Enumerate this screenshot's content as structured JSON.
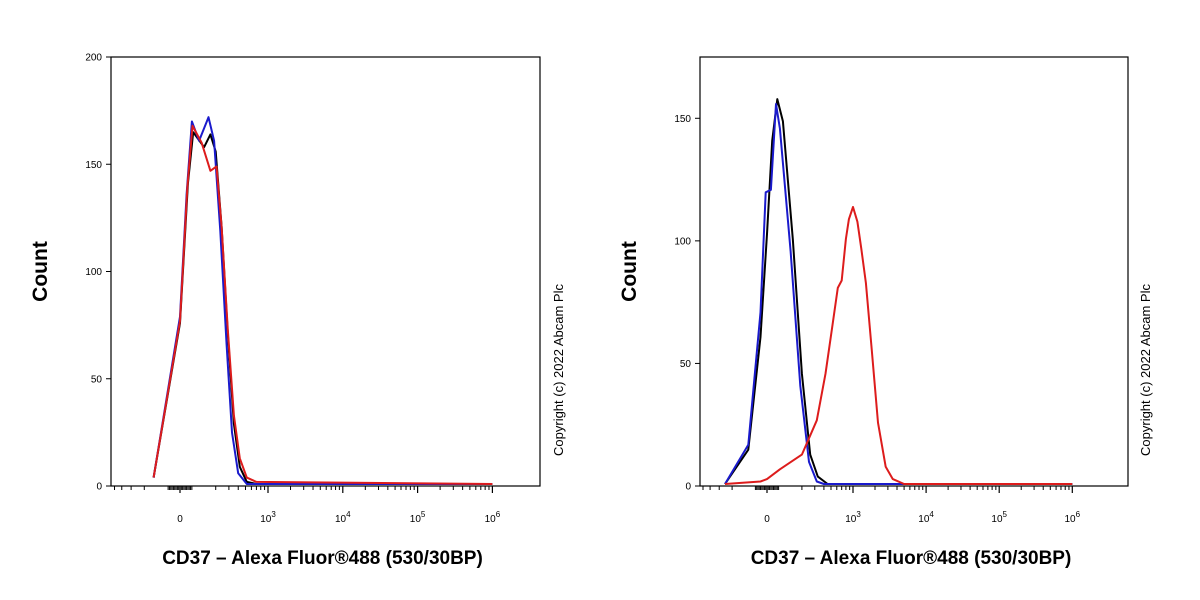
{
  "chart_data": [
    {
      "type": "line",
      "ylabel": "Count",
      "xlabel": "CD37 – Alexa Fluor®488 (530/30BP)",
      "copyright": "Copyright (c) 2022 Abcam Plc",
      "y_ticks": [
        0,
        50,
        100,
        150,
        200
      ],
      "ylim": [
        0,
        200
      ],
      "x_ticks": [
        {
          "base": "0",
          "exp": ""
        },
        {
          "base": "10",
          "exp": "3"
        },
        {
          "base": "10",
          "exp": "4"
        },
        {
          "base": "10",
          "exp": "5"
        },
        {
          "base": "10",
          "exp": "6"
        }
      ],
      "x_scale": "biexponential",
      "colors": {
        "black": "#000000",
        "blue": "#1a1acc",
        "red": "#dd1c1c"
      },
      "series": [
        {
          "color": "black",
          "points": [
            [
              -150,
              3
            ],
            [
              0,
              75
            ],
            [
              60,
              140
            ],
            [
              100,
              164
            ],
            [
              140,
              157
            ],
            [
              170,
              163
            ],
            [
              200,
              155
            ],
            [
              240,
              120
            ],
            [
              290,
              70
            ],
            [
              350,
              28
            ],
            [
              420,
              8
            ],
            [
              520,
              1
            ],
            [
              700,
              0
            ],
            [
              1000000,
              0
            ]
          ]
        },
        {
          "color": "blue",
          "points": [
            [
              -150,
              3
            ],
            [
              0,
              78
            ],
            [
              50,
              135
            ],
            [
              90,
              169
            ],
            [
              120,
              160
            ],
            [
              160,
              171
            ],
            [
              190,
              160
            ],
            [
              230,
              118
            ],
            [
              280,
              65
            ],
            [
              330,
              24
            ],
            [
              400,
              5
            ],
            [
              520,
              0
            ],
            [
              1000000,
              0
            ]
          ]
        },
        {
          "color": "red",
          "points": [
            [
              -150,
              3
            ],
            [
              0,
              76
            ],
            [
              55,
              138
            ],
            [
              95,
              167
            ],
            [
              130,
              159
            ],
            [
              170,
              146
            ],
            [
              205,
              148
            ],
            [
              240,
              120
            ],
            [
              290,
              72
            ],
            [
              350,
              32
            ],
            [
              420,
              12
            ],
            [
              520,
              3
            ],
            [
              700,
              1
            ],
            [
              1000000,
              0
            ]
          ]
        }
      ]
    },
    {
      "type": "line",
      "ylabel": "Count",
      "xlabel": "CD37 – Alexa Fluor®488 (530/30BP)",
      "copyright": "Copyright (c) 2022 Abcam Plc",
      "y_ticks": [
        0,
        50,
        100,
        150
      ],
      "ylim": [
        0,
        175
      ],
      "x_ticks": [
        {
          "base": "0",
          "exp": ""
        },
        {
          "base": "10",
          "exp": "3"
        },
        {
          "base": "10",
          "exp": "4"
        },
        {
          "base": "10",
          "exp": "5"
        },
        {
          "base": "10",
          "exp": "6"
        }
      ],
      "x_scale": "biexponential",
      "colors": {
        "black": "#000000",
        "blue": "#1a1acc",
        "red": "#dd1c1c"
      },
      "series": [
        {
          "color": "black",
          "points": [
            [
              -250,
              0
            ],
            [
              -120,
              14
            ],
            [
              -50,
              60
            ],
            [
              0,
              102
            ],
            [
              40,
              140
            ],
            [
              80,
              157
            ],
            [
              110,
              148
            ],
            [
              150,
              100
            ],
            [
              200,
              45
            ],
            [
              260,
              12
            ],
            [
              330,
              3
            ],
            [
              450,
              0
            ],
            [
              1000000,
              0
            ]
          ]
        },
        {
          "color": "blue",
          "points": [
            [
              -250,
              0
            ],
            [
              -120,
              16
            ],
            [
              -50,
              70
            ],
            [
              -10,
              119
            ],
            [
              30,
              120
            ],
            [
              70,
              155
            ],
            [
              100,
              145
            ],
            [
              140,
              95
            ],
            [
              190,
              40
            ],
            [
              250,
              9
            ],
            [
              320,
              1
            ],
            [
              400,
              0
            ],
            [
              1000000,
              0
            ]
          ]
        },
        {
          "color": "red",
          "points": [
            [
              -250,
              0
            ],
            [
              -50,
              1
            ],
            [
              0,
              2
            ],
            [
              100,
              6
            ],
            [
              200,
              12
            ],
            [
              320,
              26
            ],
            [
              420,
              45
            ],
            [
              520,
              64
            ],
            [
              620,
              80
            ],
            [
              700,
              83
            ],
            [
              800,
              100
            ],
            [
              880,
              108
            ],
            [
              1000,
              113
            ],
            [
              1150,
              107
            ],
            [
              1300,
              96
            ],
            [
              1500,
              82
            ],
            [
              1800,
              55
            ],
            [
              2200,
              25
            ],
            [
              2800,
              7
            ],
            [
              3500,
              2
            ],
            [
              5000,
              0
            ],
            [
              1000000,
              0
            ]
          ]
        }
      ]
    }
  ]
}
